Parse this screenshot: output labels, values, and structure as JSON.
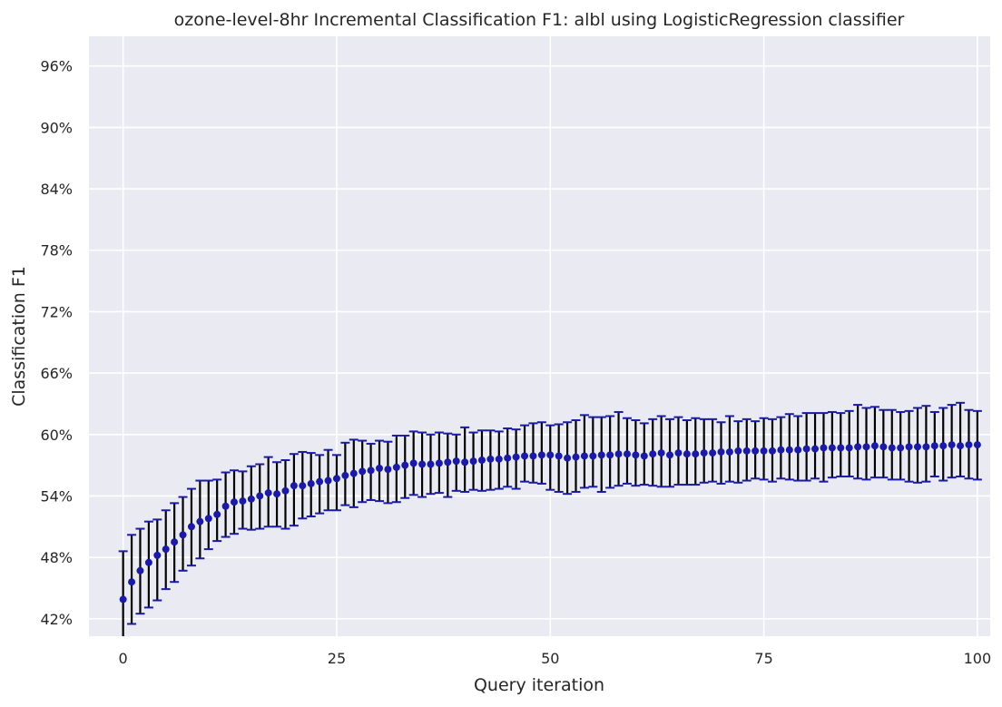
{
  "chart_data": {
    "type": "scatter",
    "title": "ozone-level-8hr Incremental Classification F1: albl using LogisticRegression classifier",
    "xlabel": "Query iteration",
    "ylabel": "Classification F1",
    "xlim": [
      -4,
      101.5
    ],
    "ylim": [
      40.3,
      98.9
    ],
    "xticks": [
      0,
      25,
      50,
      75,
      100
    ],
    "yticks": [
      42,
      48,
      54,
      60,
      66,
      72,
      78,
      84,
      90,
      96
    ],
    "ytick_format": "percent",
    "grid": true,
    "series": [
      {
        "marker_color": "#1a1aa6",
        "errorbar_color": "#000000",
        "cap_color": "#1a1aa6",
        "x": [
          0,
          1,
          2,
          3,
          4,
          5,
          6,
          7,
          8,
          9,
          10,
          11,
          12,
          13,
          14,
          15,
          16,
          17,
          18,
          19,
          20,
          21,
          22,
          23,
          24,
          25,
          26,
          27,
          28,
          29,
          30,
          31,
          32,
          33,
          34,
          35,
          36,
          37,
          38,
          39,
          40,
          41,
          42,
          43,
          44,
          45,
          46,
          47,
          48,
          49,
          50,
          51,
          52,
          53,
          54,
          55,
          56,
          57,
          58,
          59,
          60,
          61,
          62,
          63,
          64,
          65,
          66,
          67,
          68,
          69,
          70,
          71,
          72,
          73,
          74,
          75,
          76,
          77,
          78,
          79,
          80,
          81,
          82,
          83,
          84,
          85,
          86,
          87,
          88,
          89,
          90,
          91,
          92,
          93,
          94,
          95,
          96,
          97,
          98,
          99,
          100
        ],
        "y": [
          43.9,
          45.6,
          46.7,
          47.5,
          48.2,
          48.8,
          49.5,
          50.2,
          51.0,
          51.5,
          51.8,
          52.2,
          53.0,
          53.4,
          53.5,
          53.7,
          54.0,
          54.3,
          54.2,
          54.5,
          55.0,
          55.0,
          55.2,
          55.4,
          55.5,
          55.7,
          56.0,
          56.2,
          56.4,
          56.5,
          56.7,
          56.6,
          56.8,
          57.0,
          57.2,
          57.1,
          57.1,
          57.2,
          57.3,
          57.4,
          57.3,
          57.4,
          57.5,
          57.6,
          57.6,
          57.7,
          57.8,
          57.9,
          57.9,
          58.0,
          58.0,
          57.9,
          57.7,
          57.8,
          57.9,
          57.9,
          58.0,
          58.0,
          58.1,
          58.1,
          58.0,
          57.9,
          58.1,
          58.2,
          58.0,
          58.2,
          58.1,
          58.1,
          58.2,
          58.2,
          58.3,
          58.3,
          58.4,
          58.4,
          58.4,
          58.4,
          58.4,
          58.5,
          58.5,
          58.5,
          58.6,
          58.6,
          58.7,
          58.7,
          58.7,
          58.7,
          58.8,
          58.8,
          58.9,
          58.8,
          58.7,
          58.7,
          58.8,
          58.8,
          58.8,
          58.9,
          58.9,
          59.0,
          58.9,
          59.0,
          59.0
        ],
        "upper": [
          48.6,
          50.2,
          50.8,
          51.5,
          51.7,
          52.6,
          53.3,
          53.9,
          54.7,
          55.5,
          55.5,
          55.6,
          56.3,
          56.5,
          56.4,
          56.9,
          57.1,
          57.8,
          57.3,
          57.5,
          58.1,
          58.3,
          58.2,
          58.0,
          58.5,
          58.0,
          59.2,
          59.5,
          59.4,
          59.1,
          59.4,
          59.3,
          59.9,
          59.9,
          60.3,
          60.2,
          60.0,
          60.2,
          60.1,
          60.0,
          60.7,
          60.2,
          60.4,
          60.4,
          60.3,
          60.6,
          60.5,
          60.9,
          61.1,
          61.2,
          60.9,
          61.0,
          61.2,
          61.4,
          61.9,
          61.7,
          61.7,
          61.8,
          62.2,
          61.6,
          61.4,
          61.1,
          61.5,
          61.8,
          61.5,
          61.7,
          61.4,
          61.6,
          61.5,
          61.5,
          61.2,
          61.8,
          61.3,
          61.5,
          61.3,
          61.6,
          61.5,
          61.7,
          62.0,
          61.8,
          62.1,
          62.1,
          62.1,
          62.2,
          62.1,
          62.3,
          62.9,
          62.6,
          62.7,
          62.4,
          62.4,
          62.2,
          62.3,
          62.6,
          62.8,
          62.2,
          62.6,
          62.9,
          63.1,
          62.4,
          62.3
        ],
        "lower": [
          39.0,
          41.5,
          42.5,
          43.1,
          43.8,
          44.9,
          45.6,
          46.7,
          47.2,
          47.9,
          48.8,
          49.6,
          50.0,
          50.3,
          50.8,
          50.7,
          50.8,
          51.0,
          51.0,
          50.8,
          51.1,
          51.8,
          52.0,
          52.3,
          52.6,
          52.6,
          53.1,
          52.9,
          53.4,
          53.6,
          53.5,
          53.3,
          53.4,
          53.8,
          54.1,
          53.9,
          54.2,
          54.3,
          53.9,
          54.5,
          54.4,
          54.6,
          54.5,
          54.6,
          54.7,
          54.9,
          54.7,
          55.4,
          55.3,
          55.2,
          54.6,
          54.4,
          54.2,
          54.4,
          54.8,
          54.9,
          54.4,
          54.8,
          55.0,
          55.2,
          55.0,
          55.1,
          55.0,
          54.9,
          54.9,
          55.1,
          55.1,
          55.1,
          55.3,
          55.4,
          55.2,
          55.4,
          55.3,
          55.5,
          55.7,
          55.6,
          55.4,
          55.7,
          55.6,
          55.5,
          55.5,
          55.7,
          55.4,
          55.8,
          55.9,
          55.9,
          55.7,
          55.6,
          55.8,
          55.8,
          55.6,
          55.6,
          55.4,
          55.3,
          55.4,
          55.9,
          55.5,
          55.8,
          55.9,
          55.7,
          55.6
        ]
      }
    ]
  }
}
